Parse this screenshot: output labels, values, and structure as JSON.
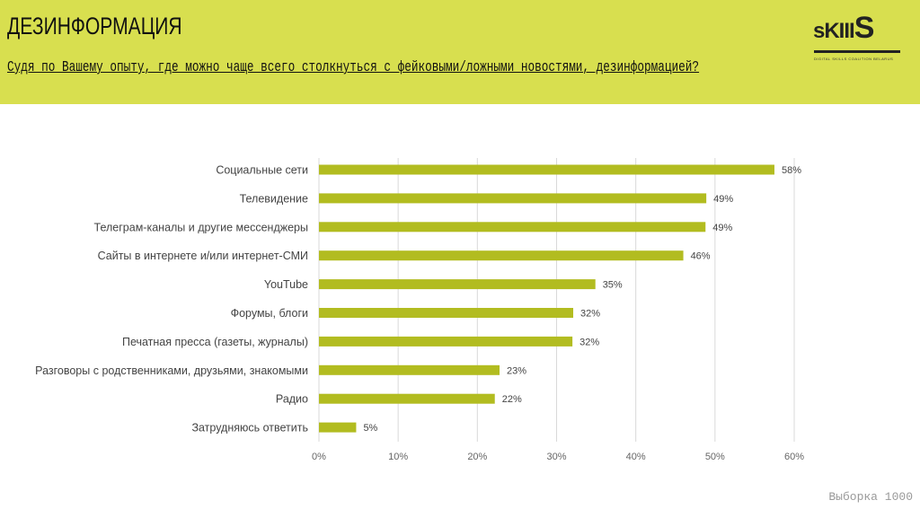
{
  "header": {
    "title": "ДЕЗИНФОРМАЦИЯ",
    "question": "Судя по Вашему опыту, где можно чаще всего столкнуться с фейковыми/ложными новостями, дезинформацией?",
    "logo_text": "sKIIIS",
    "logo_tagline": "DIGITAL SKILLS COALITION BELARUS"
  },
  "footer": {
    "sample": "Выборка 1000"
  },
  "colors": {
    "header_bg": "#d8df4f",
    "bar": "#b2bc20",
    "grid": "#d9d9d9"
  },
  "chart_data": {
    "type": "bar",
    "orientation": "horizontal",
    "categories": [
      "Социальные сети",
      "Телевидение",
      "Телеграм-каналы и другие мессенджеры",
      "Сайты в интернете и/или интернет-СМИ",
      "YouTube",
      "Форумы, блоги",
      "Печатная пресса (газеты, журналы)",
      "Разговоры с родственниками, друзьями, знакомыми",
      "Радио",
      "Затрудняюсь ответить"
    ],
    "values": [
      57.5,
      48.9,
      48.8,
      46.0,
      34.9,
      32.1,
      32.0,
      22.8,
      22.2,
      4.7
    ],
    "value_labels": [
      "58%",
      "49%",
      "49%",
      "46%",
      "35%",
      "32%",
      "32%",
      "23%",
      "22%",
      "5%"
    ],
    "xlim": [
      0,
      60
    ],
    "xticks": [
      "0%",
      "10%",
      "20%",
      "30%",
      "40%",
      "50%",
      "60%"
    ],
    "grid": true,
    "legend": "none",
    "xlabel": "",
    "ylabel": ""
  }
}
